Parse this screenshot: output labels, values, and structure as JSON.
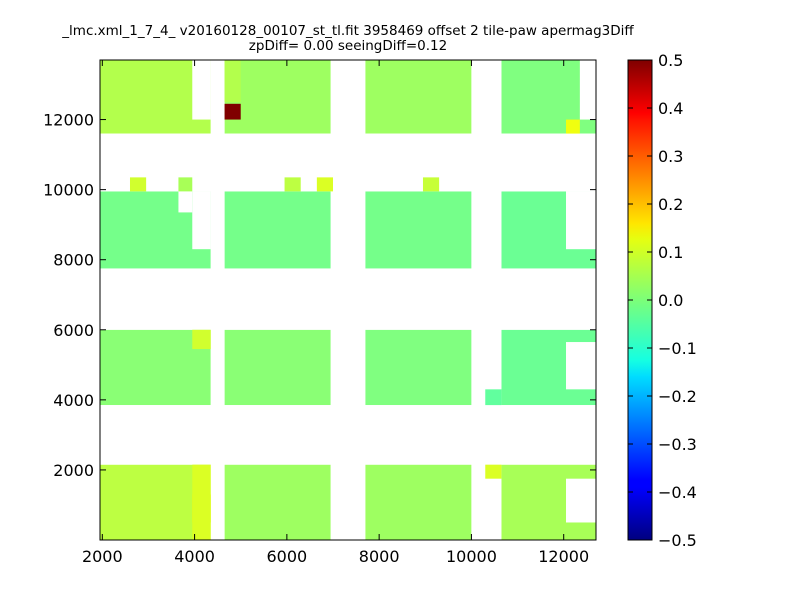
{
  "chart_data": {
    "type": "heatmap",
    "title_line1": "_lmc.xml_1_7_4_ v20160128_00107_st_tl.fit 3958469 offset 2 tile-paw apermag3Diff",
    "title_line2": "zpDiff= 0.00 seeingDiff=0.12",
    "xlabel": "",
    "ylabel": "",
    "xlim": [
      1950,
      12700
    ],
    "ylim": [
      0,
      13700
    ],
    "x_ticks": [
      2000,
      4000,
      6000,
      8000,
      10000,
      12000
    ],
    "y_ticks": [
      2000,
      4000,
      6000,
      8000,
      10000,
      12000
    ],
    "colorbar": {
      "colormap": "jet",
      "vmin": -0.5,
      "vmax": 0.5,
      "ticks": [
        0.5,
        0.4,
        0.3,
        0.2,
        0.1,
        0.0,
        -0.1,
        -0.2,
        -0.3,
        -0.4,
        -0.5
      ],
      "tick_labels": [
        "0.5",
        "0.4",
        "0.3",
        "0.2",
        "0.1",
        "0.0",
        "−0.1",
        "−0.2",
        "−0.3",
        "−0.4",
        "−0.5"
      ]
    },
    "tile_blocks": [
      {
        "x": [
          1950,
          4350
        ],
        "y": [
          0,
          2150
        ],
        "value": 0.06
      },
      {
        "x": [
          4650,
          6950
        ],
        "y": [
          0,
          2150
        ],
        "value": 0.03
      },
      {
        "x": [
          7700,
          10000
        ],
        "y": [
          0,
          2150
        ],
        "value": 0.03
      },
      {
        "x": [
          10650,
          12700
        ],
        "y": [
          0,
          2150
        ],
        "value": 0.04
      },
      {
        "x": [
          1950,
          4350
        ],
        "y": [
          3850,
          6000
        ],
        "value": 0.01
      },
      {
        "x": [
          4650,
          6950
        ],
        "y": [
          3850,
          6000
        ],
        "value": 0.01
      },
      {
        "x": [
          7700,
          10000
        ],
        "y": [
          3850,
          6000
        ],
        "value": 0.0
      },
      {
        "x": [
          10650,
          12700
        ],
        "y": [
          3850,
          6000
        ],
        "value": -0.02
      },
      {
        "x": [
          1950,
          4350
        ],
        "y": [
          7750,
          9950
        ],
        "value": -0.01
      },
      {
        "x": [
          4650,
          6950
        ],
        "y": [
          7750,
          9950
        ],
        "value": -0.01
      },
      {
        "x": [
          7700,
          10000
        ],
        "y": [
          7750,
          9950
        ],
        "value": -0.01
      },
      {
        "x": [
          10650,
          12700
        ],
        "y": [
          7750,
          9950
        ],
        "value": -0.02
      },
      {
        "x": [
          1950,
          4350
        ],
        "y": [
          11600,
          13700
        ],
        "value": 0.05
      },
      {
        "x": [
          4650,
          6950
        ],
        "y": [
          11600,
          13700
        ],
        "value": 0.03
      },
      {
        "x": [
          7700,
          10000
        ],
        "y": [
          11600,
          13700
        ],
        "value": 0.03
      },
      {
        "x": [
          10650,
          12700
        ],
        "y": [
          11600,
          13700
        ],
        "value": 0.0
      }
    ],
    "highlight_cells": [
      {
        "x": [
          4650,
          5000
        ],
        "y": [
          12000,
          12450
        ],
        "value": 0.5
      },
      {
        "x": [
          3950,
          4350
        ],
        "y": [
          500,
          1300
        ],
        "value": 0.14
      },
      {
        "x": [
          3950,
          4350
        ],
        "y": [
          0,
          2150
        ],
        "value": 0.09
      },
      {
        "x": [
          10300,
          10650
        ],
        "y": [
          1750,
          2150
        ],
        "value": 0.09
      },
      {
        "x": [
          3950,
          4350
        ],
        "y": [
          5450,
          6000
        ],
        "value": 0.08
      },
      {
        "x": [
          2600,
          2950
        ],
        "y": [
          9950,
          10350
        ],
        "value": 0.08
      },
      {
        "x": [
          3650,
          3950
        ],
        "y": [
          9950,
          10350
        ],
        "value": 0.04
      },
      {
        "x": [
          5950,
          6300
        ],
        "y": [
          9950,
          10350
        ],
        "value": 0.06
      },
      {
        "x": [
          6650,
          7000
        ],
        "y": [
          9950,
          10350
        ],
        "value": 0.09
      },
      {
        "x": [
          8950,
          9300
        ],
        "y": [
          9950,
          10350
        ],
        "value": 0.07
      },
      {
        "x": [
          12050,
          12350
        ],
        "y": [
          11600,
          12000
        ],
        "value": 0.11
      },
      {
        "x": [
          4650,
          5000
        ],
        "y": [
          12500,
          13700
        ],
        "value": 0.05
      },
      {
        "x": [
          10300,
          10650
        ],
        "y": [
          3850,
          4300
        ],
        "value": -0.03
      }
    ],
    "gaps": [
      {
        "x": [
          4350,
          4650
        ],
        "y": [
          0,
          13700
        ]
      },
      {
        "x": [
          6950,
          7700
        ],
        "y": [
          0,
          13700
        ]
      },
      {
        "x": [
          10000,
          10300
        ],
        "y": [
          0,
          13700
        ]
      },
      {
        "x": [
          10300,
          10650
        ],
        "y": [
          4300,
          13700
        ]
      },
      {
        "x": [
          10300,
          10650
        ],
        "y": [
          0,
          1750
        ]
      },
      {
        "x": [
          1950,
          12700
        ],
        "y": [
          2150,
          3850
        ]
      },
      {
        "x": [
          1950,
          12700
        ],
        "y": [
          6000,
          7750
        ]
      },
      {
        "x": [
          1950,
          12700
        ],
        "y": [
          9950,
          11600
        ]
      },
      {
        "x": [
          12050,
          12700
        ],
        "y": [
          8300,
          9950
        ]
      },
      {
        "x": [
          12050,
          12700
        ],
        "y": [
          4300,
          5650
        ]
      },
      {
        "x": [
          12050,
          12700
        ],
        "y": [
          500,
          1750
        ]
      },
      {
        "x": [
          12350,
          12700
        ],
        "y": [
          12000,
          13700
        ]
      },
      {
        "x": [
          3950,
          4350
        ],
        "y": [
          12000,
          13700
        ]
      },
      {
        "x": [
          3950,
          4350
        ],
        "y": [
          9950,
          8300
        ]
      },
      {
        "x": [
          3650,
          3950
        ],
        "y": [
          9350,
          9950
        ]
      }
    ]
  }
}
